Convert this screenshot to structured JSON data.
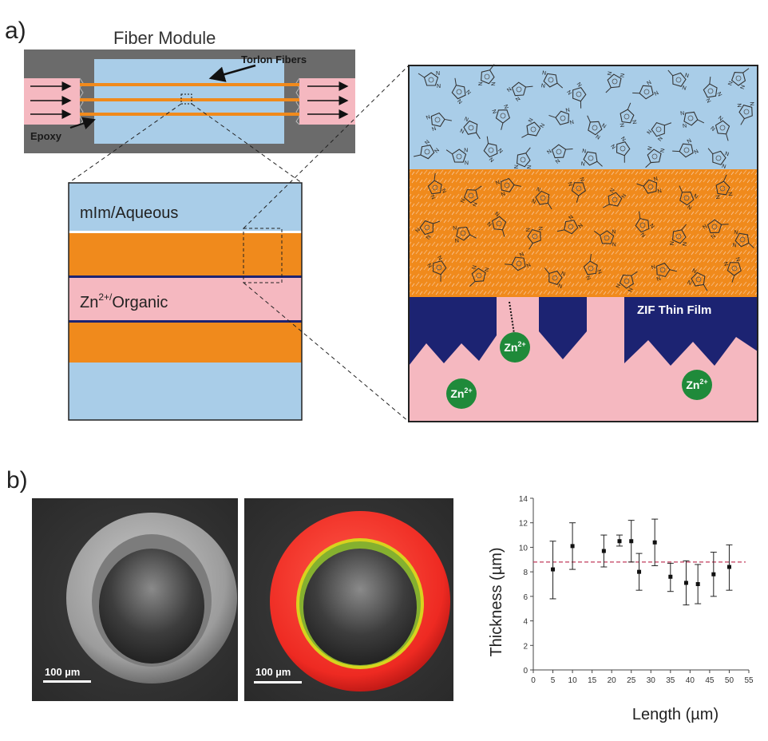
{
  "panel_a": {
    "label": "a)",
    "module_title": "Fiber Module",
    "torlon_label": "Torlon Fibers",
    "epoxy_label": "Epoxy",
    "cross_section": {
      "top_label": "mIm/Aqueous",
      "zn_base": "Zn",
      "zn_sup": "2+/",
      "zn_rest": "Organic"
    },
    "zoom": {
      "film_label": "ZIF Thin Film",
      "ion_base": "Zn",
      "ion_sup": "2+"
    },
    "colors": {
      "aqueous": "#a9cde8",
      "fiber": "#f08a1c",
      "organic": "#f5b8c0",
      "zif": "#1c2372",
      "zn_ion": "#1f8a3a",
      "module_gray": "#6b6b6b"
    }
  },
  "panel_b": {
    "label": "b)",
    "sem_left_scale": "100 µm",
    "sem_right_scale": "100 µm"
  },
  "chart_data": {
    "type": "scatter",
    "xlabel": "Length (µm)",
    "ylabel": "Thickness (µm)",
    "xlim": [
      0,
      55
    ],
    "ylim": [
      0,
      14
    ],
    "xticks": [
      0,
      5,
      10,
      15,
      20,
      25,
      30,
      35,
      40,
      45,
      50,
      55
    ],
    "yticks": [
      0,
      2,
      4,
      6,
      8,
      10,
      12,
      14
    ],
    "mean_line": 8.8,
    "points": [
      {
        "x": 5,
        "y": 8.2,
        "lo": 5.8,
        "hi": 10.5
      },
      {
        "x": 10,
        "y": 10.1,
        "lo": 8.2,
        "hi": 12.0
      },
      {
        "x": 18,
        "y": 9.7,
        "lo": 8.4,
        "hi": 11.0
      },
      {
        "x": 22,
        "y": 10.5,
        "lo": 10.1,
        "hi": 11.0
      },
      {
        "x": 25,
        "y": 10.5,
        "lo": 8.8,
        "hi": 12.2
      },
      {
        "x": 27,
        "y": 8.0,
        "lo": 6.5,
        "hi": 9.5
      },
      {
        "x": 31,
        "y": 10.4,
        "lo": 8.5,
        "hi": 12.3
      },
      {
        "x": 35,
        "y": 7.6,
        "lo": 6.4,
        "hi": 8.7
      },
      {
        "x": 39,
        "y": 7.1,
        "lo": 5.3,
        "hi": 8.9
      },
      {
        "x": 42,
        "y": 7.0,
        "lo": 5.4,
        "hi": 8.6
      },
      {
        "x": 46,
        "y": 7.8,
        "lo": 6.0,
        "hi": 9.6
      },
      {
        "x": 50,
        "y": 8.4,
        "lo": 6.5,
        "hi": 10.2
      }
    ]
  }
}
